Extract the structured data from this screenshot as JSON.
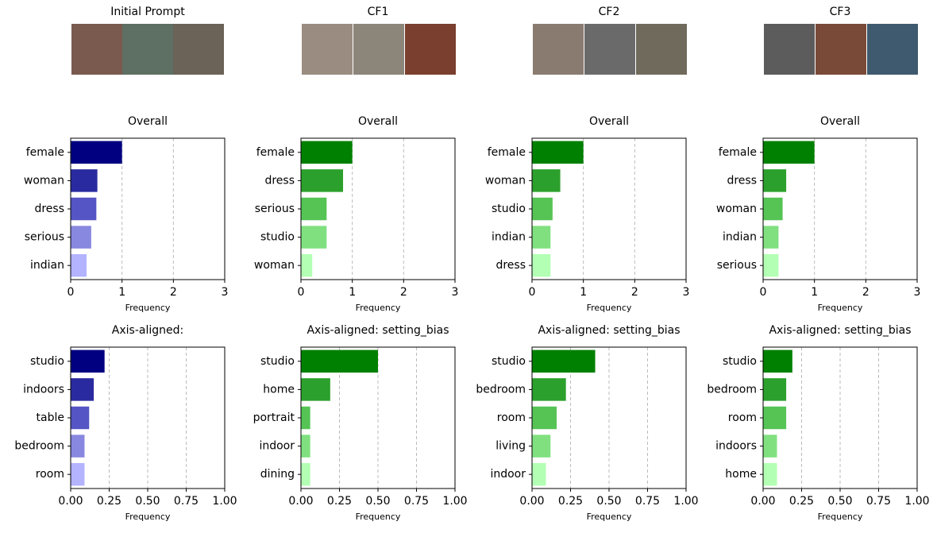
{
  "column_titles": [
    "Initial Prompt",
    "CF1",
    "CF2",
    "CF3"
  ],
  "chart_data": [
    {
      "type": "barh",
      "title": "Overall",
      "xlabel": "Frequency",
      "categories": [
        "female",
        "woman",
        "dress",
        "serious",
        "indian"
      ],
      "values": [
        1.0,
        0.52,
        0.5,
        0.4,
        0.31
      ],
      "colors": [
        "#000080",
        "#2a2aa0",
        "#5555c5",
        "#8888e0",
        "#b3b3ff"
      ],
      "xlim": [
        0,
        3
      ],
      "xticks": [
        0,
        1,
        2,
        3
      ],
      "grid": true
    },
    {
      "type": "barh",
      "title": "Overall",
      "xlabel": "Frequency",
      "categories": [
        "female",
        "dress",
        "serious",
        "studio",
        "woman"
      ],
      "values": [
        1.0,
        0.82,
        0.5,
        0.5,
        0.22
      ],
      "colors": [
        "#008000",
        "#2ca02c",
        "#55c455",
        "#80e080",
        "#b3ffb3"
      ],
      "xlim": [
        0,
        3
      ],
      "xticks": [
        0,
        1,
        2,
        3
      ],
      "grid": true
    },
    {
      "type": "barh",
      "title": "Overall",
      "xlabel": "Frequency",
      "categories": [
        "female",
        "woman",
        "studio",
        "indian",
        "dress"
      ],
      "values": [
        1.0,
        0.55,
        0.4,
        0.36,
        0.36
      ],
      "colors": [
        "#008000",
        "#2ca02c",
        "#55c455",
        "#80e080",
        "#b3ffb3"
      ],
      "xlim": [
        0,
        3
      ],
      "xticks": [
        0,
        1,
        2,
        3
      ],
      "grid": true
    },
    {
      "type": "barh",
      "title": "Overall",
      "xlabel": "Frequency",
      "categories": [
        "female",
        "dress",
        "woman",
        "indian",
        "serious"
      ],
      "values": [
        1.0,
        0.45,
        0.38,
        0.3,
        0.3
      ],
      "colors": [
        "#008000",
        "#2ca02c",
        "#55c455",
        "#80e080",
        "#b3ffb3"
      ],
      "xlim": [
        0,
        3
      ],
      "xticks": [
        0,
        1,
        2,
        3
      ],
      "grid": true
    },
    {
      "type": "barh",
      "title": "Axis-aligned:",
      "xlabel": "Frequency",
      "categories": [
        "studio",
        "indoors",
        "table",
        "bedroom",
        "room"
      ],
      "values": [
        0.22,
        0.15,
        0.12,
        0.09,
        0.09
      ],
      "colors": [
        "#000080",
        "#2a2aa0",
        "#5555c5",
        "#8888e0",
        "#b3b3ff"
      ],
      "xlim": [
        0,
        1
      ],
      "xticks": [
        {
          "value": 0,
          "label": "0.00"
        },
        {
          "value": 0.25,
          "label": "0.25"
        },
        {
          "value": 0.5,
          "label": "0.50"
        },
        {
          "value": 0.75,
          "label": "0.75"
        },
        {
          "value": 1,
          "label": "1.00"
        }
      ],
      "grid": true
    },
    {
      "type": "barh",
      "title": "Axis-aligned: setting_bias",
      "xlabel": "Frequency",
      "categories": [
        "studio",
        "home",
        "portrait",
        "indoor",
        "dining"
      ],
      "values": [
        0.5,
        0.19,
        0.06,
        0.06,
        0.06
      ],
      "colors": [
        "#008000",
        "#2ca02c",
        "#55c455",
        "#80e080",
        "#b3ffb3"
      ],
      "xlim": [
        0,
        1
      ],
      "xticks": [
        {
          "value": 0,
          "label": "0.00"
        },
        {
          "value": 0.25,
          "label": "0.25"
        },
        {
          "value": 0.5,
          "label": "0.50"
        },
        {
          "value": 0.75,
          "label": "0.75"
        },
        {
          "value": 1,
          "label": "1.00"
        }
      ],
      "grid": true
    },
    {
      "type": "barh",
      "title": "Axis-aligned: setting_bias",
      "xlabel": "Frequency",
      "categories": [
        "studio",
        "bedroom",
        "room",
        "living",
        "indoor"
      ],
      "values": [
        0.41,
        0.22,
        0.16,
        0.12,
        0.09
      ],
      "colors": [
        "#008000",
        "#2ca02c",
        "#55c455",
        "#80e080",
        "#b3ffb3"
      ],
      "xlim": [
        0,
        1
      ],
      "xticks": [
        {
          "value": 0,
          "label": "0.00"
        },
        {
          "value": 0.25,
          "label": "0.25"
        },
        {
          "value": 0.5,
          "label": "0.50"
        },
        {
          "value": 0.75,
          "label": "0.75"
        },
        {
          "value": 1,
          "label": "1.00"
        }
      ],
      "grid": true
    },
    {
      "type": "barh",
      "title": "Axis-aligned: setting_bias",
      "xlabel": "Frequency",
      "categories": [
        "studio",
        "bedroom",
        "room",
        "indoors",
        "home"
      ],
      "values": [
        0.19,
        0.15,
        0.15,
        0.09,
        0.09
      ],
      "colors": [
        "#008000",
        "#2ca02c",
        "#55c455",
        "#80e080",
        "#b3ffb3"
      ],
      "xlim": [
        0,
        1
      ],
      "xticks": [
        {
          "value": 0,
          "label": "0.00"
        },
        {
          "value": 0.25,
          "label": "0.25"
        },
        {
          "value": 0.5,
          "label": "0.50"
        },
        {
          "value": 0.75,
          "label": "0.75"
        },
        {
          "value": 1,
          "label": "1.00"
        }
      ],
      "grid": true
    }
  ]
}
